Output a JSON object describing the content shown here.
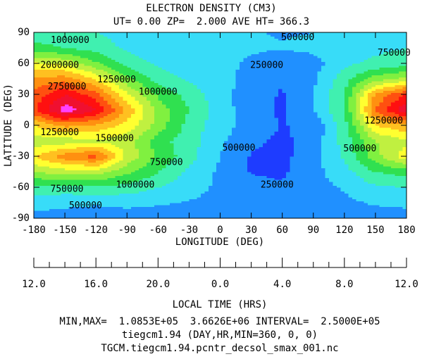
{
  "chart_data": {
    "type": "contour",
    "title": "ELECTRON DENSITY (CM3)",
    "subtitle": "UT= 0.00 ZP=  2.000 AVE HT= 366.3",
    "xlabel": "LONGITUDE (DEG)",
    "ylabel": "LATITUDE (DEG)",
    "xlim": [
      -180,
      180
    ],
    "xticks": [
      -180,
      -150,
      -120,
      -90,
      -60,
      -30,
      0,
      30,
      60,
      90,
      120,
      150,
      180
    ],
    "ylim": [
      -90,
      90
    ],
    "yticks": [
      -90,
      -60,
      -30,
      0,
      30,
      60,
      90
    ],
    "x2label": "LOCAL TIME (HRS)",
    "x2ticks": [
      {
        "value": -180,
        "label": "12.0"
      },
      {
        "value": -120,
        "label": "16.0"
      },
      {
        "value": -60,
        "label": "20.0"
      },
      {
        "value": 0,
        "label": "0.0"
      },
      {
        "value": 60,
        "label": "4.0"
      },
      {
        "value": 120,
        "label": "8.0"
      },
      {
        "value": 180,
        "label": "12.0"
      }
    ],
    "x2minorticks": [
      -165,
      -150,
      -135,
      -105,
      -90,
      -75,
      -45,
      -30,
      -15,
      15,
      30,
      45,
      75,
      90,
      105,
      135,
      150,
      165
    ],
    "x": [
      -180,
      -150,
      -120,
      -90,
      -60,
      -30,
      0,
      30,
      60,
      90,
      120,
      150,
      180
    ],
    "y": [
      -90,
      -75,
      -60,
      -45,
      -30,
      -15,
      0,
      15,
      30,
      45,
      60,
      75,
      90
    ],
    "z": [
      [
        400000,
        400000,
        400000,
        400000,
        400000,
        400000,
        400000,
        400000,
        400000,
        400000,
        400000,
        400000,
        400000
      ],
      [
        600000,
        550000,
        520000,
        550000,
        520000,
        480000,
        420000,
        380000,
        350000,
        400000,
        450000,
        520000,
        550000
      ],
      [
        900000,
        900000,
        950000,
        900000,
        750000,
        600000,
        450000,
        350000,
        280000,
        420000,
        520000,
        700000,
        750000
      ],
      [
        1500000,
        1600000,
        1600000,
        1300000,
        1000000,
        700000,
        450000,
        230000,
        210000,
        420000,
        650000,
        1000000,
        1100000
      ],
      [
        2000000,
        2400000,
        2600000,
        1700000,
        1200000,
        850000,
        500000,
        230000,
        180000,
        400000,
        800000,
        1400000,
        1900000
      ],
      [
        1600000,
        1600000,
        1700000,
        1600000,
        1100000,
        850000,
        550000,
        300000,
        200000,
        350000,
        850000,
        1500000,
        1700000
      ],
      [
        2000000,
        2300000,
        2200000,
        1900000,
        1400000,
        900000,
        600000,
        400000,
        240000,
        300000,
        900000,
        2000000,
        2200000
      ],
      [
        2700000,
        3400000,
        3000000,
        2200000,
        1400000,
        1000000,
        600000,
        380000,
        200000,
        500000,
        1000000,
        2500000,
        3200000
      ],
      [
        2600000,
        3000000,
        2600000,
        1800000,
        1200000,
        900000,
        600000,
        350000,
        230000,
        500000,
        1000000,
        2300000,
        2800000
      ],
      [
        2300000,
        2400000,
        2000000,
        1300000,
        900000,
        700000,
        600000,
        400000,
        260000,
        450000,
        900000,
        1400000,
        1600000
      ],
      [
        1800000,
        1700000,
        1300000,
        900000,
        700000,
        620000,
        580000,
        450000,
        300000,
        400000,
        700000,
        800000,
        900000
      ],
      [
        1100000,
        1000000,
        900000,
        700000,
        620000,
        600000,
        580000,
        540000,
        520000,
        560000,
        650000,
        700000,
        750000
      ],
      [
        850000,
        800000,
        750000,
        650000,
        600000,
        580000,
        560000,
        520000,
        480000,
        500000,
        600000,
        650000,
        680000
      ]
    ],
    "levels": [
      250000,
      500000,
      750000,
      1000000,
      1250000,
      1500000,
      1750000,
      2000000,
      2250000,
      2500000,
      2750000,
      3000000,
      3250000,
      3500000
    ],
    "colors": [
      "#1e3cff",
      "#2090ff",
      "#38dcf8",
      "#40f0b0",
      "#30e050",
      "#80f040",
      "#c0f040",
      "#ffff30",
      "#ffc020",
      "#ff9010",
      "#ff5010",
      "#ff1010",
      "#f01030",
      "#ff40ff",
      "#ff70ff"
    ],
    "annotations": [
      {
        "value": 1000000,
        "x": -145,
        "y": 82
      },
      {
        "value": 2000000,
        "x": -155,
        "y": 58
      },
      {
        "value": 2750000,
        "x": -148,
        "y": 37
      },
      {
        "value": 1250000,
        "x": -100,
        "y": 44
      },
      {
        "value": 1000000,
        "x": -60,
        "y": 32
      },
      {
        "value": 500000,
        "x": 75,
        "y": 85
      },
      {
        "value": 750000,
        "x": 168,
        "y": 70
      },
      {
        "value": 250000,
        "x": 45,
        "y": 58
      },
      {
        "value": 1250000,
        "x": -155,
        "y": -7
      },
      {
        "value": 1500000,
        "x": -102,
        "y": -13
      },
      {
        "value": 1250000,
        "x": 158,
        "y": 4
      },
      {
        "value": 500000,
        "x": 18,
        "y": -22
      },
      {
        "value": 750000,
        "x": -52,
        "y": -36
      },
      {
        "value": 500000,
        "x": 135,
        "y": -23
      },
      {
        "value": 1000000,
        "x": -82,
        "y": -58
      },
      {
        "value": 750000,
        "x": -148,
        "y": -62
      },
      {
        "value": 250000,
        "x": 55,
        "y": -58
      },
      {
        "value": 500000,
        "x": -130,
        "y": -78
      }
    ],
    "footer": [
      "MIN,MAX=  1.0853E+05  3.6626E+06 INTERVAL=  2.5000E+05",
      "tiegcm1.94 (DAY,HR,MIN=360, 0, 0)",
      "TGCM.tiegcm1.94.pcntr_decsol_smax_001.nc"
    ]
  }
}
